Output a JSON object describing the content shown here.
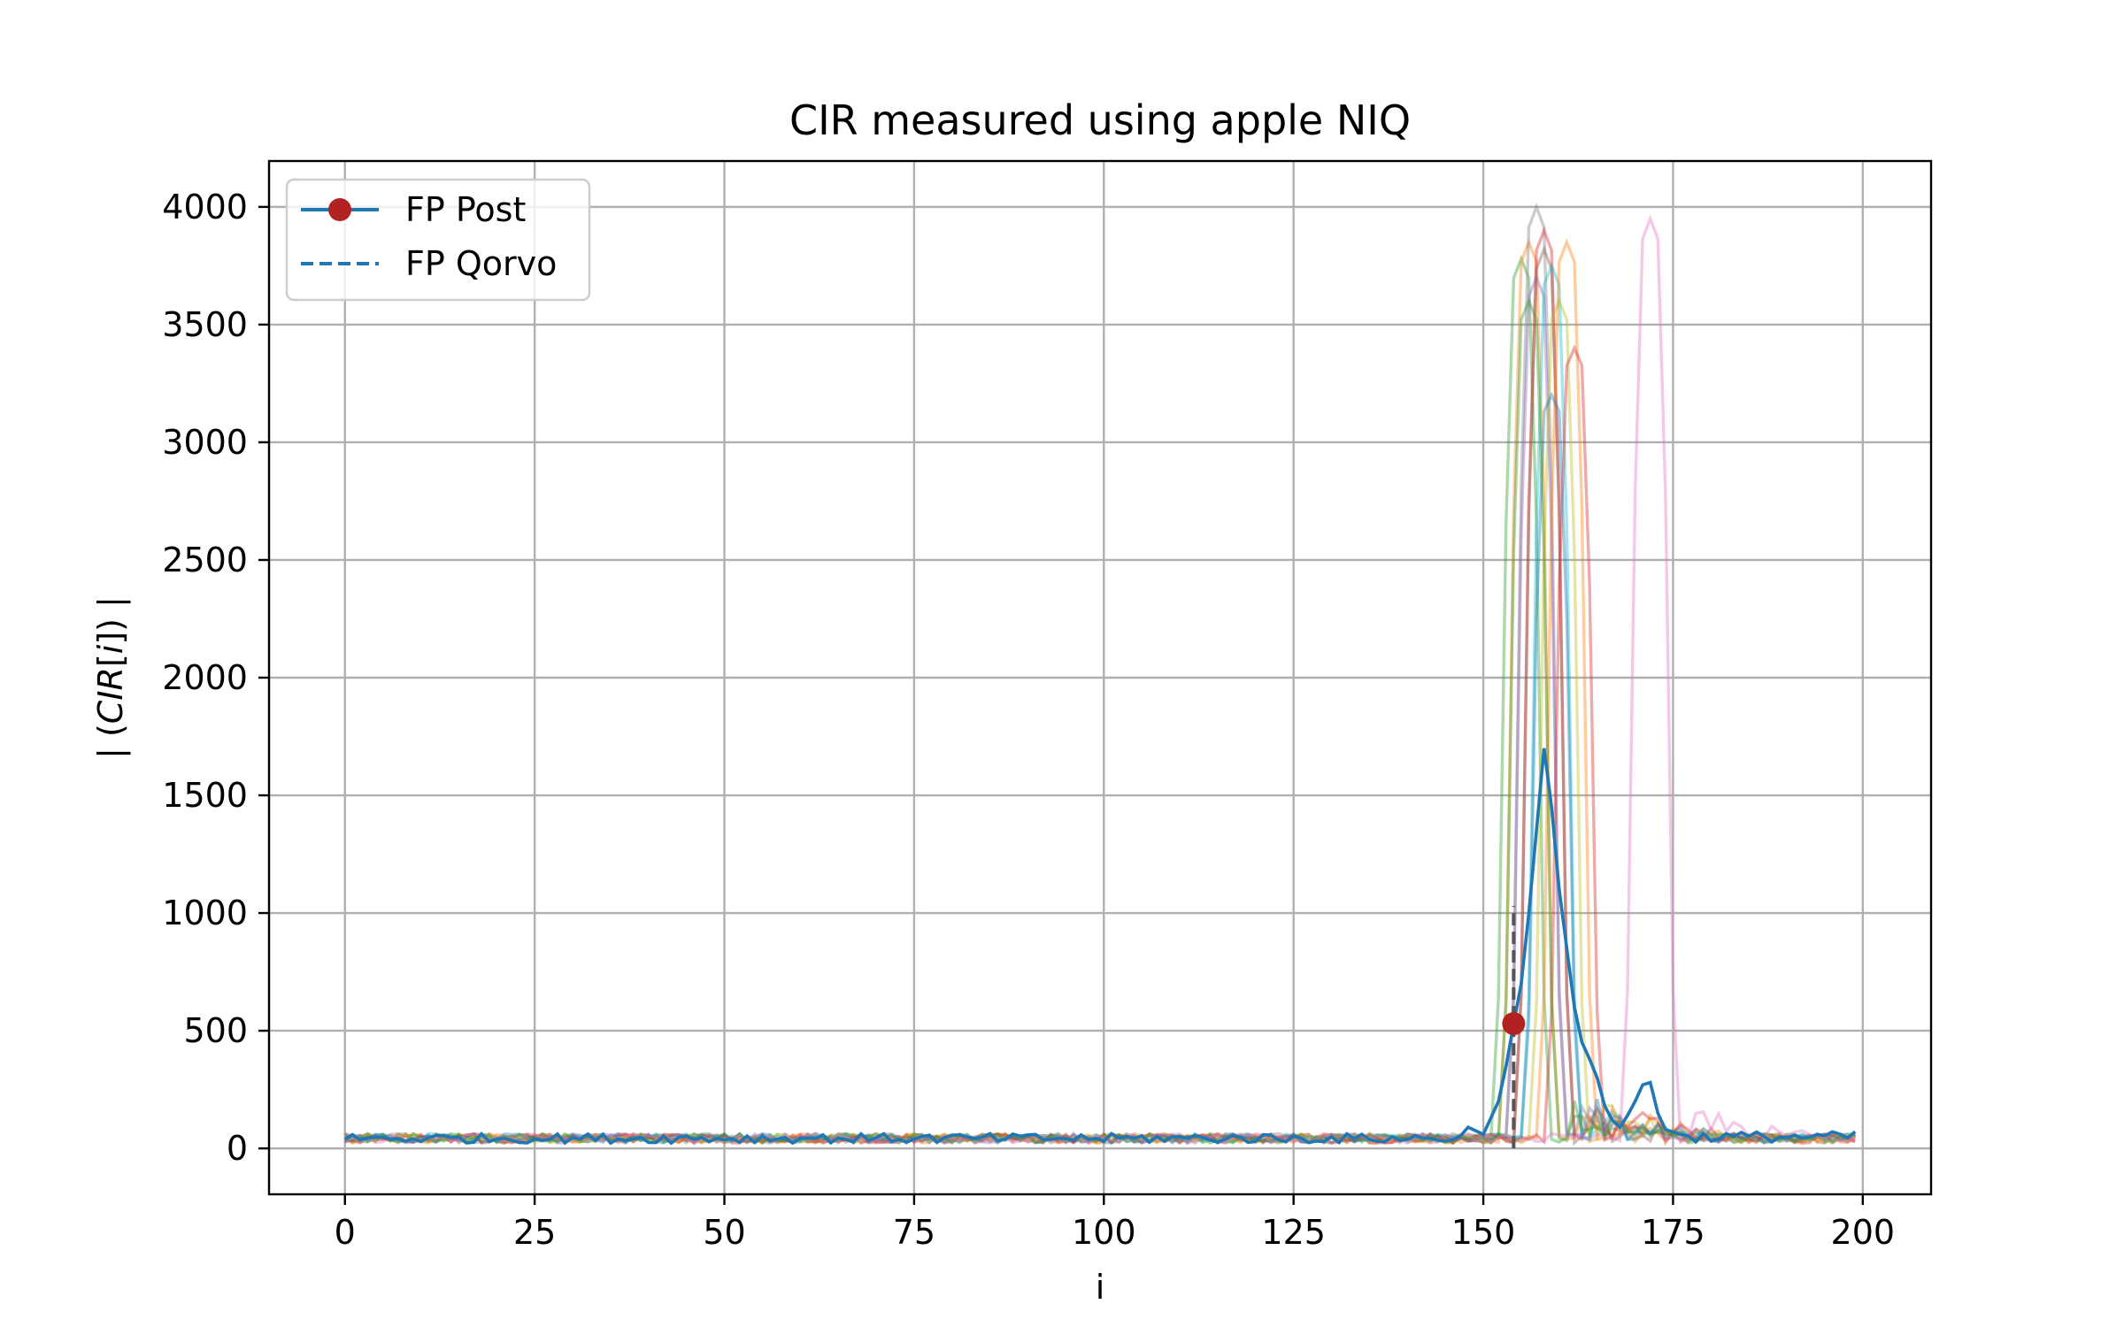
{
  "chart_data": {
    "type": "line",
    "title": "CIR measured using apple NIQ",
    "xlabel": "i",
    "ylabel_parts": [
      "| (",
      "CIR",
      "[",
      "i",
      "]) |"
    ],
    "xlim": [
      -10,
      209
    ],
    "ylim": [
      -195,
      4195
    ],
    "xticks": [
      0,
      25,
      50,
      75,
      100,
      125,
      150,
      175,
      200
    ],
    "yticks": [
      0,
      500,
      1000,
      1500,
      2000,
      2500,
      3000,
      3500,
      4000
    ],
    "grid": true,
    "legend": {
      "placement": "top-left",
      "entries": [
        {
          "label": "FP Post",
          "style": "line-marker",
          "color": "#1f77b4",
          "marker_color": "#b22222"
        },
        {
          "label": "FP Qorvo",
          "style": "dashed",
          "color": "#1f77b4"
        }
      ]
    },
    "x_range": [
      0,
      199
    ],
    "noise_level": 45,
    "series_colors": [
      "#1f77b4",
      "#ff7f0e",
      "#2ca02c",
      "#d62728",
      "#9467bd",
      "#8c564b",
      "#e377c2",
      "#7f7f7f",
      "#bcbd22",
      "#17becf"
    ],
    "background_series": [
      {
        "peak_index": 155,
        "peak_value": 3780,
        "color": "#2ca02c"
      },
      {
        "peak_index": 156,
        "peak_value": 3850,
        "color": "#ff7f0e"
      },
      {
        "peak_index": 157,
        "peak_value": 4000,
        "color": "#7f7f7f"
      },
      {
        "peak_index": 158,
        "peak_value": 3900,
        "color": "#d62728"
      },
      {
        "peak_index": 157,
        "peak_value": 3700,
        "color": "#9467bd"
      },
      {
        "peak_index": 158,
        "peak_value": 3820,
        "color": "#8c564b"
      },
      {
        "peak_index": 159,
        "peak_value": 3750,
        "color": "#17becf"
      },
      {
        "peak_index": 160,
        "peak_value": 3600,
        "color": "#bcbd22"
      },
      {
        "peak_index": 161,
        "peak_value": 3850,
        "color": "#ff7f0e"
      },
      {
        "peak_index": 162,
        "peak_value": 3400,
        "color": "#d62728"
      },
      {
        "peak_index": 159,
        "peak_value": 3200,
        "color": "#1f77b4"
      },
      {
        "peak_index": 156,
        "peak_value": 3600,
        "color": "#2ca02c"
      },
      {
        "peak_index": 172,
        "peak_value": 3950,
        "color": "#e377c2"
      }
    ],
    "highlight_series": {
      "color": "#1f77b4",
      "points": [
        [
          148,
          90
        ],
        [
          150,
          60
        ],
        [
          152,
          200
        ],
        [
          153,
          350
        ],
        [
          154,
          530
        ],
        [
          155,
          700
        ],
        [
          156,
          1000
        ],
        [
          157,
          1350
        ],
        [
          158,
          1700
        ],
        [
          159,
          1450
        ],
        [
          160,
          1100
        ],
        [
          161,
          850
        ],
        [
          162,
          600
        ],
        [
          163,
          450
        ],
        [
          164,
          380
        ],
        [
          165,
          300
        ],
        [
          166,
          180
        ],
        [
          167,
          120
        ],
        [
          168,
          90
        ],
        [
          169,
          140
        ],
        [
          170,
          200
        ],
        [
          171,
          270
        ],
        [
          172,
          280
        ],
        [
          173,
          150
        ],
        [
          174,
          80
        ],
        [
          176,
          60
        ]
      ]
    },
    "fp_post": {
      "x": 154,
      "y": 530
    },
    "fp_qorvo": {
      "x": 154,
      "y_from": 0,
      "y_to": 1030
    }
  }
}
